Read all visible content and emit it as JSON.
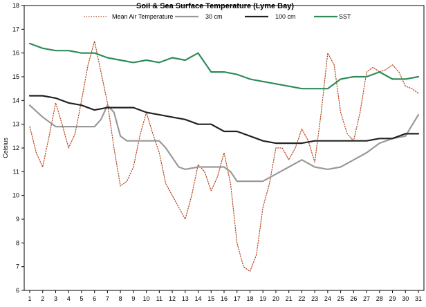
{
  "chart_data": {
    "type": "line",
    "title": "Soil & Sea Surface Temperature (Lyme Bay)",
    "xlabel": "",
    "ylabel": "Celsius",
    "ylim": [
      6,
      18
    ],
    "yticks": [
      6,
      7,
      8,
      9,
      10,
      11,
      12,
      13,
      14,
      15,
      16,
      17,
      18
    ],
    "xlim": [
      1,
      31
    ],
    "x_ticks": [
      "1",
      "2",
      "3",
      "4",
      "5",
      "6",
      "7",
      "8",
      "9",
      "10",
      "11",
      "12",
      "13",
      "14",
      "15",
      "16",
      "17",
      "18",
      "19",
      "20",
      "21",
      "22",
      "23",
      "24",
      "25",
      "26",
      "27",
      "28",
      "29",
      "30",
      "31"
    ],
    "grid": false,
    "legend_position": "top",
    "series": [
      {
        "name": "Mean Air Temperature",
        "color": "#b5441b",
        "style": "dotted",
        "x": [
          1,
          1.5,
          2,
          2.5,
          3,
          3.5,
          4,
          4.5,
          5,
          5.5,
          6,
          6.5,
          7,
          7.5,
          8,
          8.5,
          9,
          9.5,
          10,
          10.5,
          11,
          11.5,
          12,
          12.5,
          13,
          13.5,
          14,
          14.5,
          15,
          15.5,
          16,
          16.5,
          17,
          17.5,
          18,
          18.5,
          19,
          19.5,
          20,
          20.5,
          21,
          21.5,
          22,
          22.5,
          23,
          23.5,
          24,
          24.5,
          25,
          25.5,
          26,
          26.5,
          27,
          27.5,
          28,
          28.5,
          29,
          29.5,
          30,
          30.5,
          31
        ],
        "y": [
          12.9,
          11.8,
          11.2,
          12.5,
          13.9,
          13.0,
          12.0,
          12.6,
          14.0,
          15.5,
          16.5,
          15.2,
          13.9,
          12.0,
          10.4,
          10.6,
          11.2,
          12.5,
          13.5,
          12.6,
          11.8,
          10.5,
          10.0,
          9.5,
          9.0,
          10.0,
          11.3,
          11.0,
          10.2,
          10.8,
          11.8,
          10.5,
          8.0,
          7.0,
          6.8,
          7.5,
          9.5,
          10.5,
          12.0,
          12.0,
          11.5,
          12.0,
          12.8,
          12.3,
          11.4,
          13.5,
          16.0,
          15.5,
          13.5,
          12.6,
          12.3,
          13.5,
          15.2,
          15.4,
          15.2,
          15.3,
          15.5,
          15.2,
          14.6,
          14.5,
          14.3
        ]
      },
      {
        "name": "30 cm",
        "color": "#999999",
        "style": "solid",
        "x": [
          1,
          2,
          3,
          4,
          5,
          6,
          6.5,
          7,
          7.5,
          8,
          8.5,
          9,
          10,
          11,
          11.5,
          12,
          12.5,
          13,
          14,
          15,
          16,
          16.5,
          17,
          18,
          19,
          20,
          21,
          22,
          23,
          24,
          25,
          26,
          27,
          28,
          29,
          30,
          31
        ],
        "y": [
          13.8,
          13.3,
          12.9,
          12.9,
          12.9,
          12.9,
          13.2,
          13.8,
          13.5,
          12.5,
          12.3,
          12.3,
          12.3,
          12.3,
          12.0,
          11.6,
          11.2,
          11.1,
          11.2,
          11.2,
          11.2,
          11.0,
          10.6,
          10.6,
          10.6,
          10.9,
          11.2,
          11.5,
          11.2,
          11.1,
          11.2,
          11.5,
          11.8,
          12.2,
          12.4,
          12.5,
          13.4
        ]
      },
      {
        "name": "100 cm",
        "color": "#222222",
        "style": "solid",
        "x": [
          1,
          2,
          3,
          4,
          5,
          6,
          7,
          8,
          9,
          10,
          11,
          12,
          13,
          14,
          15,
          16,
          17,
          18,
          19,
          20,
          21,
          22,
          23,
          24,
          25,
          26,
          27,
          28,
          29,
          30,
          31
        ],
        "y": [
          14.2,
          14.2,
          14.1,
          13.9,
          13.8,
          13.6,
          13.7,
          13.7,
          13.7,
          13.5,
          13.4,
          13.3,
          13.2,
          13.0,
          13.0,
          12.7,
          12.7,
          12.5,
          12.3,
          12.2,
          12.2,
          12.2,
          12.3,
          12.3,
          12.3,
          12.3,
          12.3,
          12.4,
          12.4,
          12.6,
          12.6
        ]
      },
      {
        "name": "SST",
        "color": "#2e8b57",
        "style": "solid",
        "x": [
          1,
          2,
          3,
          4,
          5,
          6,
          7,
          8,
          9,
          10,
          11,
          12,
          13,
          14,
          15,
          16,
          17,
          18,
          19,
          20,
          21,
          22,
          23,
          24,
          25,
          26,
          27,
          28,
          29,
          30,
          31
        ],
        "y": [
          16.4,
          16.2,
          16.1,
          16.1,
          16.0,
          16.0,
          15.8,
          15.7,
          15.6,
          15.7,
          15.6,
          15.8,
          15.7,
          16.0,
          15.2,
          15.2,
          15.1,
          14.9,
          14.8,
          14.7,
          14.6,
          14.5,
          14.5,
          14.5,
          14.9,
          15.0,
          15.0,
          15.2,
          14.9,
          14.9,
          15.0
        ]
      }
    ]
  }
}
